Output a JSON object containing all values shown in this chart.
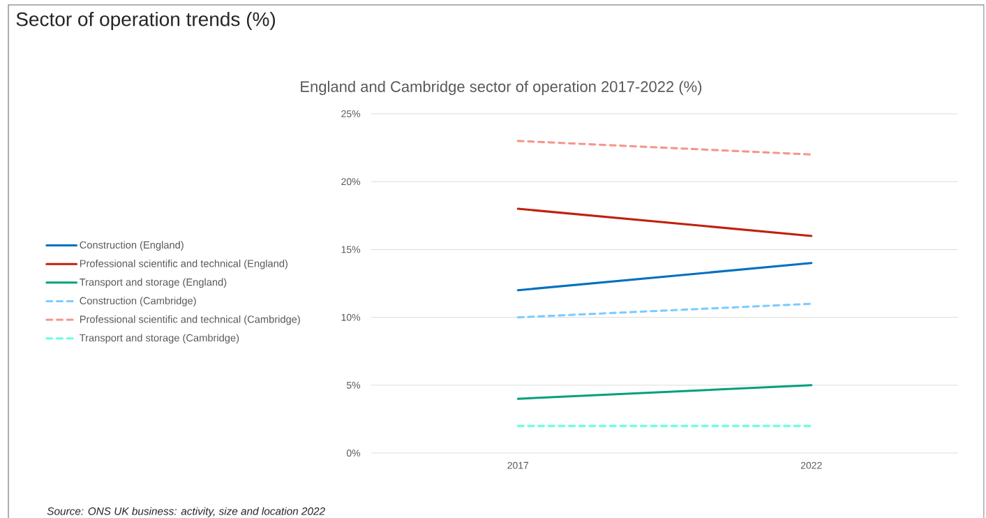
{
  "chart_data": {
    "type": "line",
    "title": "Sector of operation trends (%)",
    "subtitle": "England and Cambridge sector of operation 2017-2022 (%)",
    "categories": [
      "2017",
      "2022"
    ],
    "series": [
      {
        "name": "Construction (England)",
        "color": "#0070c0",
        "values": [
          12,
          14
        ],
        "line_style": "solid"
      },
      {
        "name": "Professional scientific and technical (England)",
        "color": "#c0200e",
        "values": [
          18,
          16
        ],
        "line_style": "solid"
      },
      {
        "name": "Transport and storage (England)",
        "color": "#00a07a",
        "values": [
          4,
          5
        ],
        "line_style": "solid"
      },
      {
        "name": "Construction (Cambridge)",
        "color": "#7dcbff",
        "values": [
          10,
          11
        ],
        "line_style": "dashed"
      },
      {
        "name": "Professional scientific and technical (Cambridge)",
        "color": "#f4968a",
        "values": [
          23,
          22
        ],
        "line_style": "dashed"
      },
      {
        "name": "Transport and storage (Cambridge)",
        "color": "#66ffe0",
        "values": [
          2,
          2
        ],
        "line_style": "dashed"
      }
    ],
    "ylim": [
      0,
      25
    ],
    "yticks": [
      {
        "value": 0,
        "label": "0%"
      },
      {
        "value": 5,
        "label": "5%"
      },
      {
        "value": 10,
        "label": "10%"
      },
      {
        "value": 15,
        "label": "15%"
      },
      {
        "value": 20,
        "label": "20%"
      },
      {
        "value": 25,
        "label": "25%"
      }
    ],
    "grid": "y",
    "legend": "left",
    "marker": "none",
    "annotations": [
      "Source: ONS UK business: activity, size and location 2022"
    ]
  }
}
